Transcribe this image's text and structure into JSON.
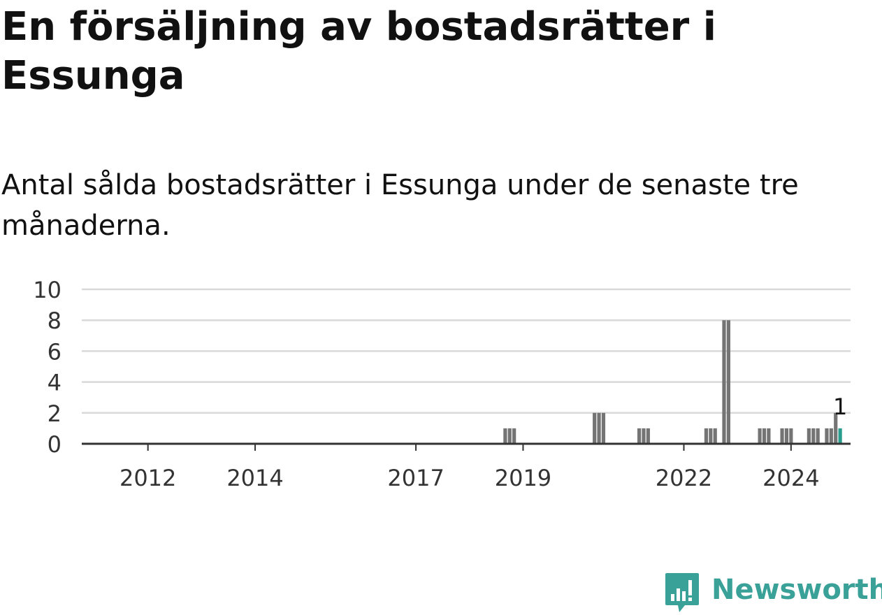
{
  "title": "En försäljning av bostadsrätter i Essunga",
  "subtitle": "Antal sålda bostadsrätter i Essunga under de senaste tre månaderna.",
  "brand": "Newsworthy",
  "colors": {
    "bar": "#747474",
    "highlight": "#2a9d8f",
    "grid": "#d9d9d9",
    "axis": "#333333",
    "brand": "#3aa198"
  },
  "chart_data": {
    "type": "bar",
    "title": "En försäljning av bostadsrätter i Essunga",
    "subtitle": "Antal sålda bostadsrätter i Essunga under de senaste tre månaderna.",
    "ylim": [
      0,
      10
    ],
    "yticks": [
      0,
      2,
      4,
      6,
      8,
      10
    ],
    "xticks": [
      2012,
      2014,
      2017,
      2019,
      2022,
      2024
    ],
    "grid": true,
    "last_value_label": "1",
    "series": [
      {
        "points": [
          {
            "date": "2018-09",
            "value": 1
          },
          {
            "date": "2018-10",
            "value": 1
          },
          {
            "date": "2018-11",
            "value": 1
          },
          {
            "date": "2020-05",
            "value": 2
          },
          {
            "date": "2020-06",
            "value": 2
          },
          {
            "date": "2020-07",
            "value": 2
          },
          {
            "date": "2021-03",
            "value": 1
          },
          {
            "date": "2021-04",
            "value": 1
          },
          {
            "date": "2021-05",
            "value": 1
          },
          {
            "date": "2022-06",
            "value": 1
          },
          {
            "date": "2022-07",
            "value": 1
          },
          {
            "date": "2022-08",
            "value": 1
          },
          {
            "date": "2022-10",
            "value": 8
          },
          {
            "date": "2022-11",
            "value": 8
          },
          {
            "date": "2023-06",
            "value": 1
          },
          {
            "date": "2023-07",
            "value": 1
          },
          {
            "date": "2023-08",
            "value": 1
          },
          {
            "date": "2023-11",
            "value": 1
          },
          {
            "date": "2023-12",
            "value": 1
          },
          {
            "date": "2024-01",
            "value": 1
          },
          {
            "date": "2024-05",
            "value": 1
          },
          {
            "date": "2024-06",
            "value": 1
          },
          {
            "date": "2024-07",
            "value": 1
          },
          {
            "date": "2024-09",
            "value": 1
          },
          {
            "date": "2024-10",
            "value": 1
          },
          {
            "date": "2024-11",
            "value": 2
          },
          {
            "date": "2024-12",
            "value": 1,
            "highlight": true
          }
        ]
      }
    ]
  }
}
